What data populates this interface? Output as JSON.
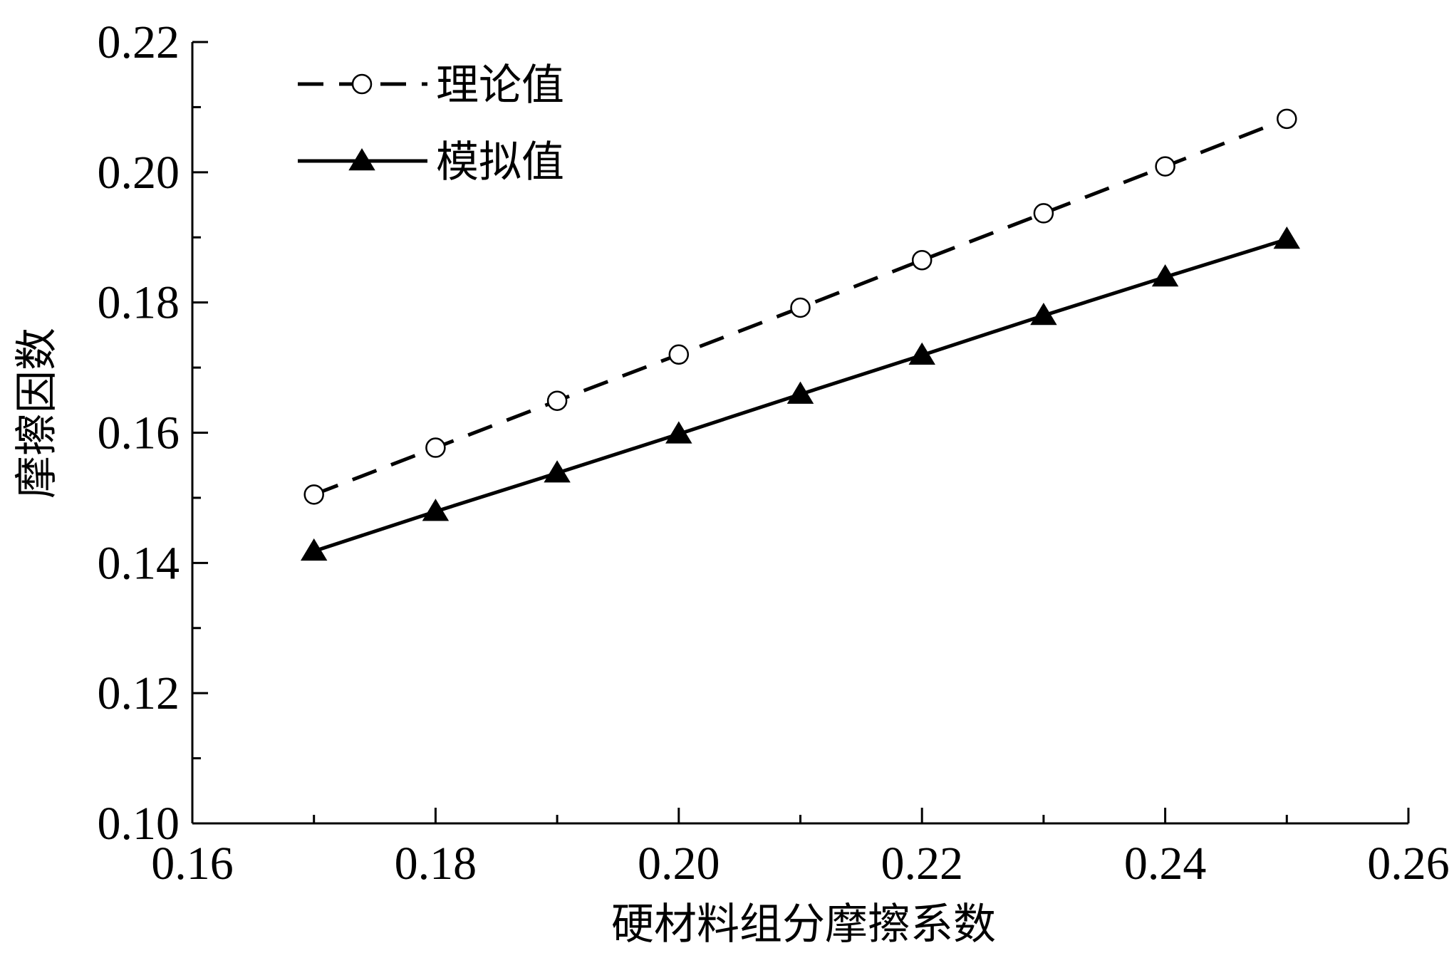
{
  "chart_data": {
    "type": "line",
    "xlabel": "硬材料组分摩擦系数",
    "ylabel": "摩擦因数",
    "xlim": [
      0.16,
      0.26
    ],
    "ylim": [
      0.1,
      0.22
    ],
    "x_ticks": [
      0.16,
      0.18,
      0.2,
      0.22,
      0.24,
      0.26
    ],
    "x_tick_labels": [
      "0.16",
      "0.18",
      "0.20",
      "0.22",
      "0.24",
      "0.26"
    ],
    "y_ticks": [
      0.1,
      0.12,
      0.14,
      0.16,
      0.18,
      0.2,
      0.22
    ],
    "y_tick_labels": [
      "0.10",
      "0.12",
      "0.14",
      "0.16",
      "0.18",
      "0.20",
      "0.22"
    ],
    "grid": false,
    "legend_position": "top-left",
    "x": [
      0.17,
      0.18,
      0.19,
      0.2,
      0.21,
      0.22,
      0.23,
      0.24,
      0.25
    ],
    "series": [
      {
        "name": "理论值",
        "line_style": "dashed",
        "marker": "open-circle",
        "color": "#000000",
        "values": [
          0.1505,
          0.1577,
          0.1649,
          0.172,
          0.1792,
          0.1865,
          0.1937,
          0.2009,
          0.2082
        ]
      },
      {
        "name": "模拟值",
        "line_style": "solid",
        "marker": "filled-triangle",
        "color": "#000000",
        "values": [
          0.1418,
          0.1479,
          0.1538,
          0.1598,
          0.1659,
          0.1719,
          0.178,
          0.1839,
          0.1897
        ]
      }
    ]
  }
}
